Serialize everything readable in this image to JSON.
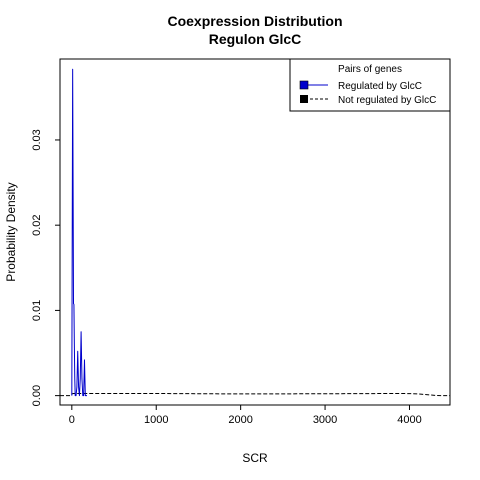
{
  "chart_data": {
    "type": "line",
    "title": "Coexpression Distribution",
    "subtitle": "Regulon GlcC",
    "xlabel": "SCR",
    "ylabel": "Probability Density",
    "xlim": [
      -140,
      4480
    ],
    "ylim": [
      -0.0011,
      0.0395
    ],
    "x_ticks": [
      0,
      1000,
      2000,
      3000,
      4000
    ],
    "x_tick_labels": [
      "0",
      "1000",
      "2000",
      "3000",
      "4000"
    ],
    "y_ticks": [
      0.0,
      0.01,
      0.02,
      0.03
    ],
    "y_tick_labels": [
      "0.00",
      "0.01",
      "0.02",
      "0.03"
    ],
    "grid": false,
    "legend": {
      "title": "Pairs of genes",
      "placement": "top-right"
    },
    "series": [
      {
        "name": "Regulated by  GlcC",
        "color": "#0000cc",
        "line_style": "solid",
        "x": [
          0,
          5,
          10,
          15,
          20,
          25,
          30,
          35,
          40,
          50,
          60,
          70,
          80,
          90,
          100,
          110,
          120,
          130,
          140,
          150,
          160,
          170,
          180
        ],
        "y": [
          0.0,
          0.02,
          0.0383,
          0.025,
          0.0108,
          0.0107,
          0.006,
          0.002,
          0.0,
          0.0,
          0.001,
          0.0052,
          0.001,
          0.0,
          0.002,
          0.0075,
          0.002,
          0.0,
          0.0,
          0.0042,
          0.0,
          0.0,
          0.0
        ]
      },
      {
        "name": "Not regulated by  GlcC",
        "color": "#000000",
        "line_style": "dashed",
        "x": [
          -140,
          -20,
          0,
          20,
          200,
          500,
          1000,
          2000,
          3000,
          3800,
          4000,
          4100,
          4200,
          4300,
          4400,
          4480
        ],
        "y": [
          0.0,
          0.0,
          0.0002,
          0.00025,
          0.00025,
          0.00025,
          0.00025,
          0.0002,
          0.00022,
          0.00025,
          0.00024,
          0.0002,
          0.00012,
          3e-05,
          0.0,
          0.0
        ]
      }
    ]
  }
}
